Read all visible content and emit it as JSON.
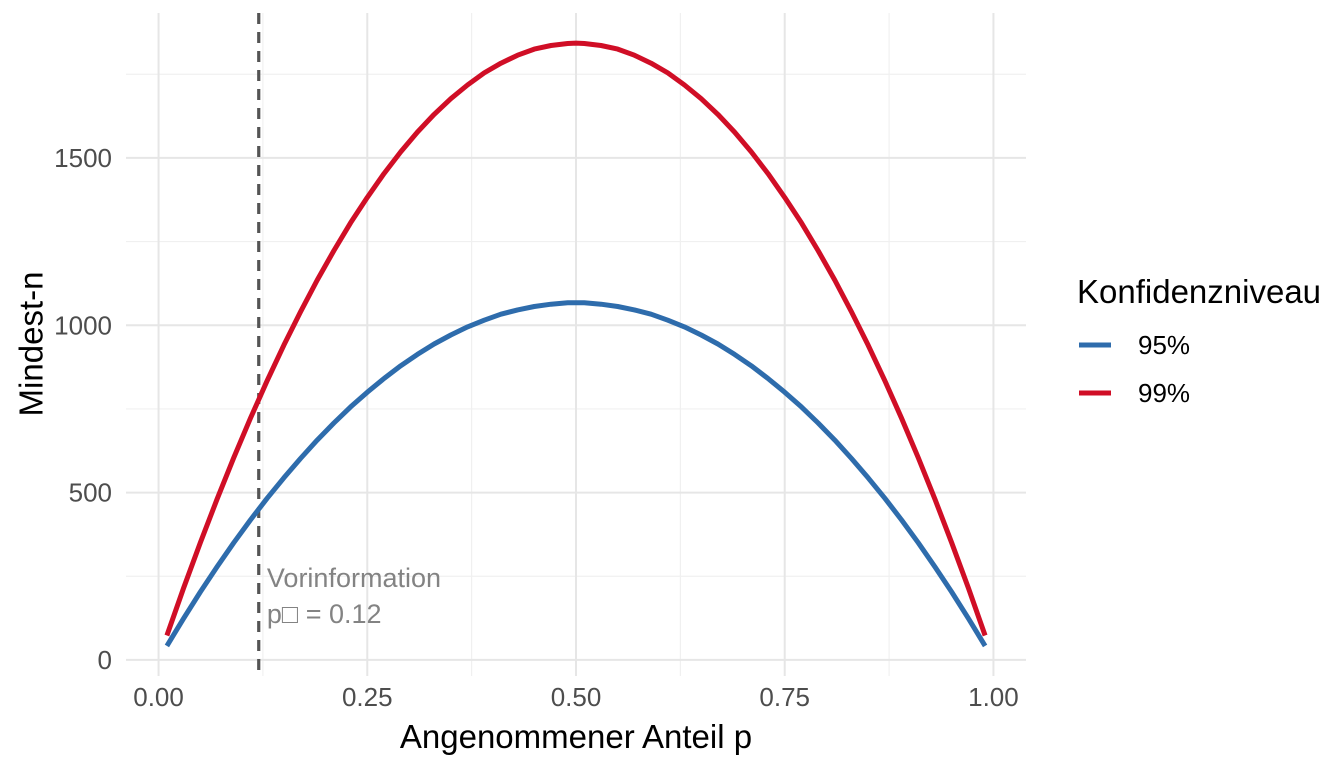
{
  "figure": {
    "background": "#ffffff",
    "grid_major_color": "#e6e6e6",
    "grid_minor_color": "#f0f0f0"
  },
  "chart_data": {
    "type": "line",
    "title": "",
    "xlabel": "Angenommener Anteil p",
    "ylabel": "Mindest-n",
    "xlim": [
      -0.039,
      1.039
    ],
    "ylim": [
      -48,
      1933
    ],
    "grid": "major+minor",
    "legend_position": "right",
    "x_tick_values": [
      0,
      0.25,
      0.5,
      0.75,
      1.0
    ],
    "x_tick_labels": [
      "0.00",
      "0.25",
      "0.50",
      "0.75",
      "1.00"
    ],
    "y_tick_values": [
      0,
      500,
      1000,
      1500
    ],
    "y_tick_labels": [
      "0",
      "500",
      "1000",
      "1500"
    ],
    "x_minor_gridlines": [
      0.125,
      0.375,
      0.625,
      0.875
    ],
    "y_minor_gridlines": [
      250,
      750,
      1250,
      1750
    ],
    "x": [
      0.01,
      0.03,
      0.05,
      0.07,
      0.09,
      0.11,
      0.13,
      0.15,
      0.17,
      0.19,
      0.21,
      0.23,
      0.25,
      0.27,
      0.29,
      0.31,
      0.33,
      0.35,
      0.37,
      0.39,
      0.41,
      0.43,
      0.45,
      0.47,
      0.49,
      0.5,
      0.51,
      0.53,
      0.55,
      0.57,
      0.59,
      0.61,
      0.63,
      0.65,
      0.67,
      0.69,
      0.71,
      0.73,
      0.75,
      0.77,
      0.79,
      0.81,
      0.83,
      0.85,
      0.87,
      0.89,
      0.91,
      0.93,
      0.95,
      0.97,
      0.99
    ],
    "series": [
      {
        "name": "95%",
        "color": "#2e6cac",
        "values": [
          42,
          124,
          203,
          278,
          350,
          418,
          483,
          544,
          602,
          657,
          708,
          756,
          800,
          841,
          879,
          913,
          944,
          971,
          995,
          1015,
          1033,
          1046,
          1056,
          1063,
          1067,
          1067,
          1067,
          1063,
          1056,
          1046,
          1033,
          1015,
          995,
          971,
          944,
          913,
          879,
          841,
          800,
          756,
          708,
          657,
          602,
          544,
          483,
          418,
          350,
          278,
          203,
          124,
          42
        ]
      },
      {
        "name": "99%",
        "color": "#d00e26",
        "values": [
          73,
          215,
          350,
          480,
          604,
          722,
          834,
          940,
          1040,
          1135,
          1223,
          1306,
          1382,
          1453,
          1518,
          1577,
          1630,
          1677,
          1718,
          1754,
          1783,
          1807,
          1825,
          1836,
          1842,
          1843,
          1842,
          1836,
          1825,
          1807,
          1783,
          1754,
          1718,
          1677,
          1630,
          1577,
          1518,
          1453,
          1382,
          1306,
          1223,
          1135,
          1040,
          940,
          834,
          722,
          604,
          480,
          350,
          215,
          73
        ]
      }
    ],
    "reference_line": {
      "axis": "x",
      "value": 0.12,
      "style": "dashed",
      "color": "#545454"
    },
    "annotation": {
      "text_lines": [
        "Vorinformation",
        "p□ = 0.12"
      ],
      "x": 0.125,
      "y": [
        218,
        110
      ],
      "color": "#838383"
    }
  },
  "legend": {
    "title": "Konfidenzniveau",
    "items": [
      {
        "label": "95%",
        "color": "#2e6cac"
      },
      {
        "label": "99%",
        "color": "#d00e26"
      }
    ]
  }
}
